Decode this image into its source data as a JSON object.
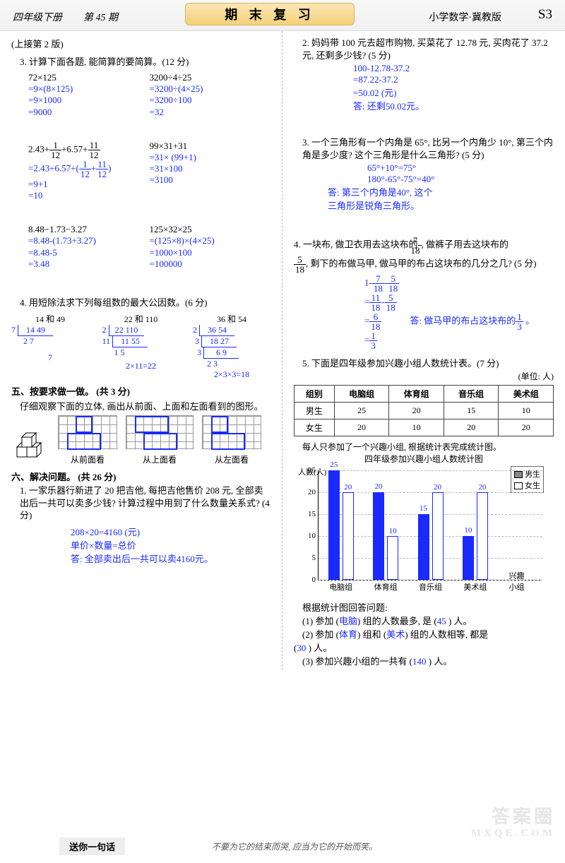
{
  "header": {
    "grade": "四年级下册",
    "issue": "第 45 期",
    "center": "期 末 复 习",
    "subject": "小学数学·冀教版",
    "code": "S3"
  },
  "left": {
    "cont": "(上接第 2 版)",
    "q3": "3. 计算下面各题, 能简算的要简算。(12 分)",
    "p1a": "72×125",
    "p1a_s": [
      "=9×(8×125)",
      "=9×1000",
      "=9000"
    ],
    "p1b": "3200÷4÷25",
    "p1b_s": [
      "=3200÷(4×25)",
      "=3200÷100",
      "=32"
    ],
    "p2a_pre": "2.43+",
    "p2a_f1n": "1",
    "p2a_f1d": "12",
    "p2a_mid": "+6.57+",
    "p2a_f2n": "11",
    "p2a_f2d": "12",
    "p2a_s_pre": "=2.43+6.57+(",
    "p2a_s_f1n": "1",
    "p2a_s_f1d": "12",
    "p2a_s_plus": "+",
    "p2a_s_f2n": "11",
    "p2a_s_f2d": "12",
    "p2a_s_post": ")",
    "p2a_s2": "=9+1",
    "p2a_s3": "=10",
    "p2b": "99×31+31",
    "p2b_s": [
      "=31× (99+1)",
      "=31×100",
      "=3100"
    ],
    "p3a": "8.48−1.73−3.27",
    "p3a_s": [
      "=8.48-(1.73+3.27)",
      "=8.48-5",
      "=3.48"
    ],
    "p3b": "125×32×25",
    "p3b_s": [
      "=(125×8)×(4×25)",
      "=1000×100",
      "=100000"
    ],
    "q4": "4. 用短除法求下列每组数的最大公因数。(6 分)",
    "gcf": [
      {
        "t": "14 和 49",
        "l": [
          "14  49",
          "2  7"
        ],
        "left": [
          "7"
        ],
        "res": "7"
      },
      {
        "t": "22 和 110",
        "l": [
          "22  110",
          "11  55",
          "1  5"
        ],
        "left": [
          "2",
          "11"
        ],
        "res": "2×11=22"
      },
      {
        "t": "36 和 54",
        "l": [
          "36  54",
          "18  27",
          "6  9",
          "2  3"
        ],
        "left": [
          "2",
          "3",
          "3"
        ],
        "res": "2×3×3=18"
      }
    ],
    "sec5": "五、按要求做一做。 (共 3 分)",
    "sec5_sub": "仔细观察下面的立体, 画出从前面、上面和左面看到的图形。",
    "labels": [
      "从前面看",
      "从上面看",
      "从左面看"
    ],
    "sec6": "六、解决问题。 (共 26 分)",
    "q6_1": "1. 一家乐器行新进了 20 把吉他, 每把吉他售价 208 元, 全部卖出后一共可以卖多少钱? 计算过程中用到了什么数量关系式? (4 分)",
    "q6_1_s": [
      "208×20=4160 (元)",
      "单价×数量=总价",
      "答: 全部卖出后一共可以卖4160元。"
    ]
  },
  "right": {
    "q2": "2. 妈妈带 100 元去超市购物, 买菜花了 12.78 元, 买肉花了 37.2 元, 还剩多少钱? (5 分)",
    "q2_s": [
      "100-12.78-37.2",
      "=87.22-37.2",
      "=50.02 (元)",
      "答: 还剩50.02元。"
    ],
    "q3": "3. 一个三角形有一个内角是 65°, 比另一个内角少 10°, 第三个内角是多少度? 这个三角形是什么三角形? (5 分)",
    "q3_s": [
      "65°+10°=75°",
      "180°-65°-75°=40°",
      "答: 第三个内角是40°, 这个",
      "三角形是锐角三角形。"
    ],
    "q4_pre": "4. 一块布, 做卫衣用去这块布的",
    "q4_f1n": "7",
    "q4_f1d": "18",
    "q4_mid": ", 做裤子用去这块布的",
    "q4_f2n": "5",
    "q4_f2d": "18",
    "q4_post": ", 剩下的布做马甲, 做马甲的布占这块布的几分之几? (5 分)",
    "q4_s1_pre": "1-",
    "q4_s1_f1n": "7",
    "q4_s1_f1d": "18",
    "q4_s1_mid": "-",
    "q4_s1_f2n": "5",
    "q4_s1_f2d": "18",
    "q4_s2_pre": "=",
    "q4_s2_f1n": "11",
    "q4_s2_f1d": "18",
    "q4_s2_mid": "-",
    "q4_s2_f2n": "5",
    "q4_s2_f2d": "18",
    "q4_s3_pre": "=",
    "q4_s3_fn": "6",
    "q4_s3_fd": "18",
    "q4_s4_pre": "=",
    "q4_s4_fn": "1",
    "q4_s4_fd": "3",
    "q4_ans_pre": "答: 做马甲的布占这块布的",
    "q4_ans_fn": "1",
    "q4_ans_fd": "3",
    "q4_ans_post": " 。",
    "q5": "5. 下面是四年级参加兴趣小组人数统计表。(7 分)",
    "unit": "(单位: 人)",
    "tbl": {
      "cols": [
        "组别",
        "电脑组",
        "体育组",
        "音乐组",
        "美术组"
      ],
      "r1": [
        "男生",
        "25",
        "20",
        "15",
        "10"
      ],
      "r2": [
        "女生",
        "20",
        "10",
        "20",
        "20"
      ]
    },
    "tbl_sub": "每人只参加了一个兴趣小组, 根据统计表完成统计图。",
    "chart_title": "四年级参加兴趣小组人数统计图",
    "legend_b": "男生",
    "legend_g": "女生",
    "ylabel": "人数(人)",
    "yticks": [
      0,
      5,
      10,
      15,
      20,
      25
    ],
    "groups": [
      "电脑组",
      "体育组",
      "音乐组",
      "美术组",
      "兴趣小组"
    ],
    "bars": [
      {
        "b": 25,
        "g": 20
      },
      {
        "b": 20,
        "g": 10
      },
      {
        "b": 15,
        "g": 20
      },
      {
        "b": 10,
        "g": 20
      }
    ],
    "colors": {
      "boy": "#1a2aff",
      "girl_border": "#1a2aff",
      "grid": "#cccccc"
    },
    "sub_q": "根据统计图回答问题:",
    "a1_pre": "(1) 参加 (",
    "a1_v": "电脑",
    "a1_mid": ") 组的人数最多, 是 (",
    "a1_n": "45",
    "a1_post": " ) 人。",
    "a2_pre": "(2) 参加 (",
    "a2_v1": "体育",
    "a2_mid1": ") 组和 (",
    "a2_v2": "美术",
    "a2_mid2": ") 组的人数相等, 都是",
    "a2_line2_pre": "(",
    "a2_n": "30",
    "a2_line2_post": " ) 人。",
    "a3_pre": "(3) 参加兴趣小组的一共有 (",
    "a3_n": "140",
    "a3_post": " ) 人。"
  },
  "footer": {
    "box": "送你一句话",
    "text": "不要为它的结束而哭, 应当为它的开始而笑。"
  },
  "watermark": {
    "l1": "答案圈",
    "l2": "MXQE.COM"
  }
}
